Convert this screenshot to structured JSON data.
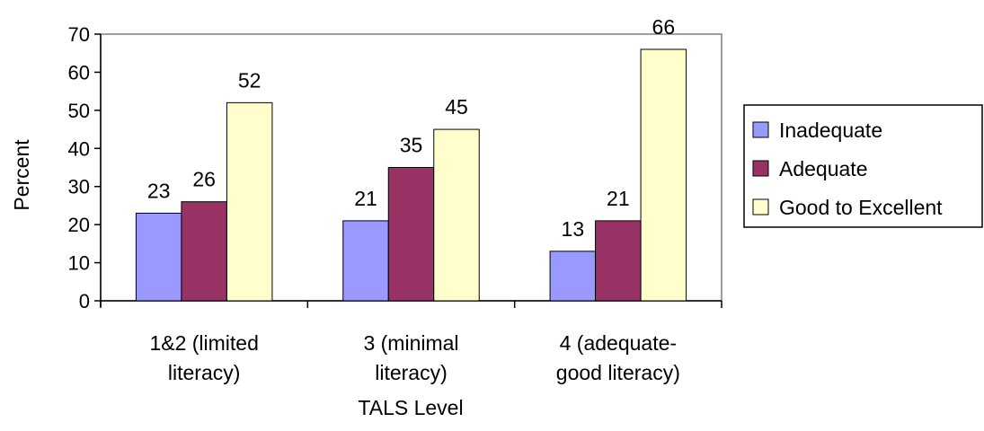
{
  "chart_data": {
    "type": "bar",
    "title": "",
    "xlabel": "TALS Level",
    "ylabel": "Percent",
    "ylim": [
      0,
      70
    ],
    "yticks": [
      0,
      10,
      20,
      30,
      40,
      50,
      60,
      70
    ],
    "grid": false,
    "legend_position": "right",
    "categories": [
      [
        "1&2 (limited",
        "literacy)"
      ],
      [
        "3 (minimal",
        "literacy)"
      ],
      [
        "4 (adequate-",
        "good literacy)"
      ]
    ],
    "series": [
      {
        "name": "Inadequate",
        "color": "#9999ff",
        "values": [
          23,
          21,
          13
        ]
      },
      {
        "name": "Adequate",
        "color": "#993366",
        "values": [
          26,
          35,
          21
        ]
      },
      {
        "name": "Good to Excellent",
        "color": "#ffffcc",
        "values": [
          52,
          45,
          66
        ]
      }
    ]
  }
}
